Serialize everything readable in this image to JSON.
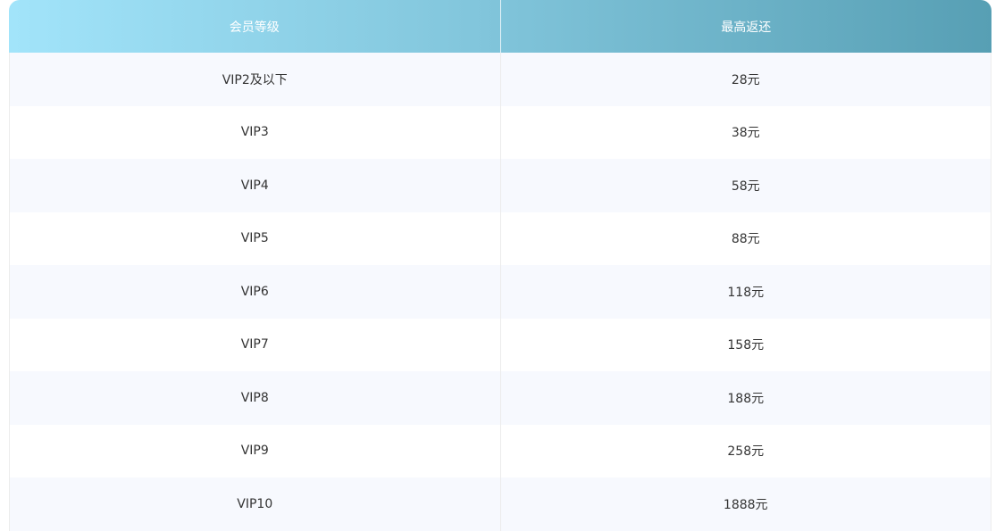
{
  "table": {
    "headers": [
      "会员等级",
      "最高返还"
    ],
    "rows": [
      [
        "VIP2及以下",
        "28元"
      ],
      [
        "VIP3",
        "38元"
      ],
      [
        "VIP4",
        "58元"
      ],
      [
        "VIP5",
        "88元"
      ],
      [
        "VIP6",
        "118元"
      ],
      [
        "VIP7",
        "158元"
      ],
      [
        "VIP8",
        "188元"
      ],
      [
        "VIP9",
        "258元"
      ],
      [
        "VIP10",
        "1888元"
      ]
    ]
  },
  "colors": {
    "header_gradient_start": "#a2e4fa",
    "header_gradient_end": "#579fb4",
    "stripe": "#f7f9fe"
  }
}
